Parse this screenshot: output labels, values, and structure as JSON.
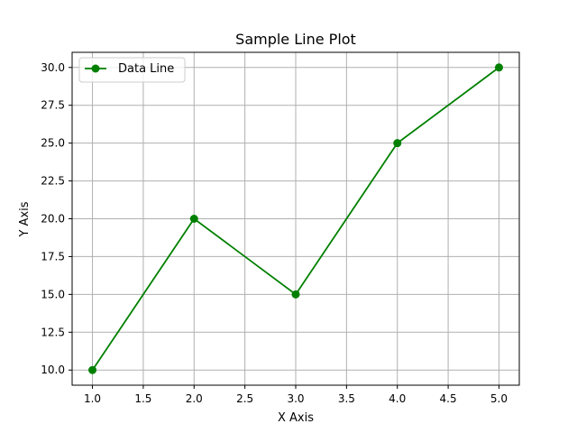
{
  "chart_data": {
    "type": "line",
    "title": "Sample Line Plot",
    "xlabel": "X Axis",
    "ylabel": "Y Axis",
    "x": [
      1.0,
      2.0,
      3.0,
      4.0,
      5.0
    ],
    "series": [
      {
        "name": "Data Line",
        "values": [
          10,
          20,
          15,
          25,
          30
        ],
        "color": "#008000",
        "marker": "circle"
      }
    ],
    "xlim": [
      0.8,
      5.2
    ],
    "ylim": [
      9.0,
      31.0
    ],
    "xticks": [
      1.0,
      1.5,
      2.0,
      2.5,
      3.0,
      3.5,
      4.0,
      4.5,
      5.0
    ],
    "xtick_labels": [
      "1.0",
      "1.5",
      "2.0",
      "2.5",
      "3.0",
      "3.5",
      "4.0",
      "4.5",
      "5.0"
    ],
    "yticks": [
      10.0,
      12.5,
      15.0,
      17.5,
      20.0,
      22.5,
      25.0,
      27.5,
      30.0
    ],
    "ytick_labels": [
      "10.0",
      "12.5",
      "15.0",
      "17.5",
      "20.0",
      "22.5",
      "25.0",
      "27.5",
      "30.0"
    ],
    "grid": true,
    "grid_color": "#b0b0b0",
    "legend_position": "top-left"
  }
}
